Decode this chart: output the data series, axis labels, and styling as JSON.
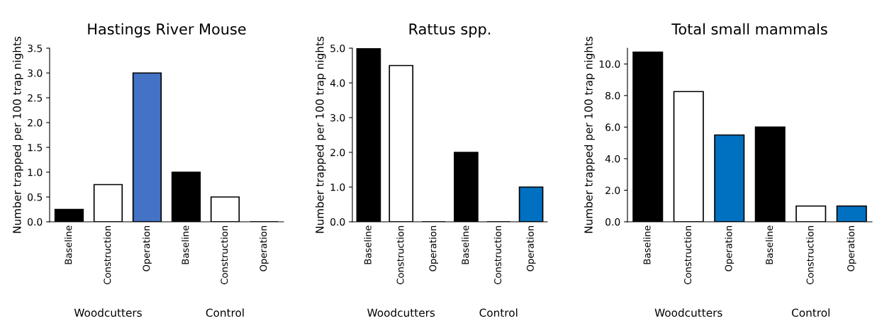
{
  "chart_data": [
    {
      "type": "bar",
      "title": "Hastings River Mouse",
      "ylabel": "Number trapped per 100 trap nights",
      "categories": [
        "Baseline",
        "Construction",
        "Operation",
        "Baseline",
        "Construction",
        "Operation"
      ],
      "values": [
        0.25,
        0.75,
        3.0,
        1.0,
        0.5,
        0
      ],
      "colors": [
        "#000000",
        "#ffffff",
        "#4472c4",
        "#000000",
        "#ffffff",
        "#000000"
      ],
      "ylim": [
        0,
        3.5
      ],
      "yticks": [
        {
          "value": 0,
          "label": "0.0"
        },
        {
          "value": 0.5,
          "label": "0.5"
        },
        {
          "value": 1,
          "label": "1.0"
        },
        {
          "value": 1.5,
          "label": "1.5"
        },
        {
          "value": 2,
          "label": "2.0"
        },
        {
          "value": 2.5,
          "label": "2.5"
        },
        {
          "value": 3,
          "label": "3.0"
        },
        {
          "value": 3.5,
          "label": "3.5"
        }
      ],
      "annotations": [
        "Woodcutters",
        "Control"
      ],
      "grid": false
    },
    {
      "type": "bar",
      "title": "Rattus spp.",
      "ylabel": "Number trapped per 100 trap nights",
      "categories": [
        "Baseline",
        "Construction",
        "Operation",
        "Baseline",
        "Construction",
        "Operation"
      ],
      "values": [
        5.0,
        4.5,
        0,
        2.0,
        0,
        1.0
      ],
      "colors": [
        "#000000",
        "#ffffff",
        "#000000",
        "#000000",
        "#000000",
        "#0070c0"
      ],
      "ylim": [
        0,
        5
      ],
      "yticks": [
        {
          "value": 0,
          "label": "0.0"
        },
        {
          "value": 1,
          "label": "1.0"
        },
        {
          "value": 2,
          "label": "2.0"
        },
        {
          "value": 3,
          "label": "3.0"
        },
        {
          "value": 4,
          "label": "4.0"
        },
        {
          "value": 5,
          "label": "5.0"
        }
      ],
      "annotations": [
        "Woodcutters",
        "Control"
      ],
      "grid": false
    },
    {
      "type": "bar",
      "title": "Total small mammals",
      "ylabel": "Number trapped per 100 trap nights",
      "categories": [
        "Baseline",
        "Construction",
        "Operation",
        "Baseline",
        "Construction",
        "Operation"
      ],
      "values": [
        10.75,
        8.25,
        5.5,
        6.0,
        1.0,
        1.0
      ],
      "colors": [
        "#000000",
        "#ffffff",
        "#0070c0",
        "#000000",
        "#ffffff",
        "#0070c0"
      ],
      "ylim": [
        0,
        11
      ],
      "yticks": [
        {
          "value": 0,
          "label": "0.0"
        },
        {
          "value": 2,
          "label": "2.0"
        },
        {
          "value": 4,
          "label": "4.0"
        },
        {
          "value": 6,
          "label": "6.0"
        },
        {
          "value": 8,
          "label": "8.0"
        },
        {
          "value": 10,
          "label": "10.0"
        }
      ],
      "annotations": [
        "Woodcutters",
        "Control"
      ],
      "grid": false
    }
  ]
}
